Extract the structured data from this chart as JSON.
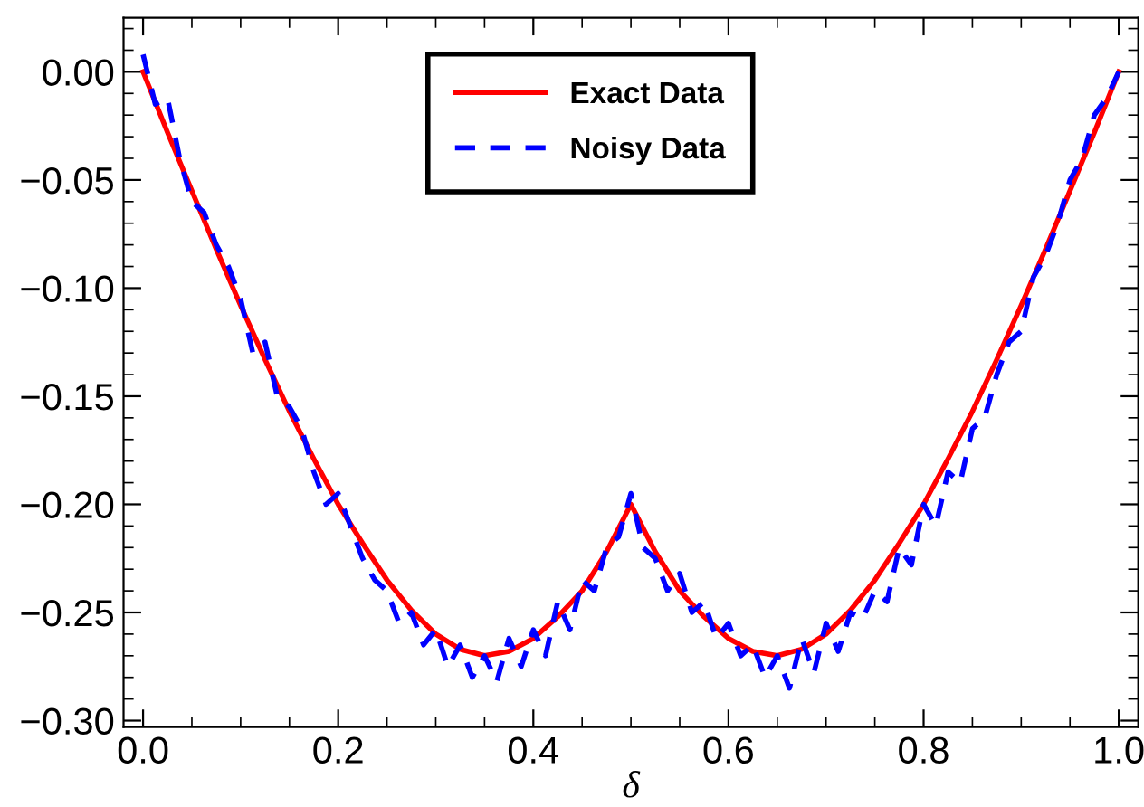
{
  "chart_data": {
    "type": "line",
    "xlabel": "δ",
    "xlim": [
      -0.02,
      1.02
    ],
    "ylim": [
      -0.303,
      0.025
    ],
    "xticks": [
      {
        "value": 0,
        "label": "0.0"
      },
      {
        "value": 0.2,
        "label": "0.2"
      },
      {
        "value": 0.4,
        "label": "0.4"
      },
      {
        "value": 0.6,
        "label": "0.6"
      },
      {
        "value": 0.8,
        "label": "0.8"
      },
      {
        "value": 1,
        "label": "1.0"
      }
    ],
    "yticks": [
      {
        "value": 0,
        "label": "0.00"
      },
      {
        "value": -0.05,
        "label": "−0.05"
      },
      {
        "value": -0.1,
        "label": "−0.10"
      },
      {
        "value": -0.15,
        "label": "−0.15"
      },
      {
        "value": -0.2,
        "label": "−0.20"
      },
      {
        "value": -0.25,
        "label": "−0.25"
      },
      {
        "value": -0.3,
        "label": "−0.30"
      }
    ],
    "grid": false,
    "legend": "top",
    "marker": "none",
    "series": [
      {
        "name": "Exact Data",
        "color": "#ff0000",
        "line_style": "solid",
        "x": [
          0,
          0.025,
          0.05,
          0.075,
          0.1,
          0.125,
          0.15,
          0.175,
          0.2,
          0.225,
          0.25,
          0.275,
          0.3,
          0.325,
          0.35,
          0.375,
          0.4,
          0.425,
          0.45,
          0.475,
          0.5,
          0.525,
          0.55,
          0.575,
          0.6,
          0.625,
          0.65,
          0.675,
          0.7,
          0.725,
          0.75,
          0.775,
          0.8,
          0.825,
          0.85,
          0.875,
          0.9,
          0.925,
          0.95,
          0.975,
          1.0
        ],
        "values": [
          0,
          -0.028,
          -0.055,
          -0.082,
          -0.108,
          -0.133,
          -0.157,
          -0.179,
          -0.2,
          -0.218,
          -0.235,
          -0.249,
          -0.26,
          -0.267,
          -0.27,
          -0.268,
          -0.262,
          -0.252,
          -0.24,
          -0.222,
          -0.2,
          -0.222,
          -0.24,
          -0.252,
          -0.262,
          -0.268,
          -0.27,
          -0.267,
          -0.26,
          -0.249,
          -0.235,
          -0.218,
          -0.2,
          -0.179,
          -0.157,
          -0.133,
          -0.108,
          -0.082,
          -0.055,
          -0.028,
          0
        ]
      },
      {
        "name": "Noisy Data",
        "color": "#0000ff",
        "line_style": "dashed",
        "x": [
          0,
          0.0125,
          0.025,
          0.0375,
          0.05,
          0.0625,
          0.075,
          0.0875,
          0.1,
          0.1125,
          0.125,
          0.1375,
          0.15,
          0.1625,
          0.175,
          0.1875,
          0.2,
          0.2125,
          0.225,
          0.2375,
          0.25,
          0.2625,
          0.275,
          0.2875,
          0.3,
          0.3125,
          0.325,
          0.3375,
          0.35,
          0.3625,
          0.375,
          0.3875,
          0.4,
          0.4125,
          0.425,
          0.4375,
          0.45,
          0.4625,
          0.475,
          0.4875,
          0.5,
          0.5125,
          0.525,
          0.5375,
          0.55,
          0.5625,
          0.575,
          0.5875,
          0.6,
          0.6125,
          0.625,
          0.6375,
          0.65,
          0.6625,
          0.675,
          0.6875,
          0.7,
          0.7125,
          0.725,
          0.7375,
          0.75,
          0.7625,
          0.775,
          0.7875,
          0.8,
          0.8125,
          0.825,
          0.8375,
          0.85,
          0.8625,
          0.875,
          0.8875,
          0.9,
          0.9125,
          0.925,
          0.9375,
          0.95,
          0.9625,
          0.975,
          0.9875,
          1.0
        ],
        "values": [
          0.008,
          -0.015,
          -0.012,
          -0.04,
          -0.06,
          -0.065,
          -0.08,
          -0.09,
          -0.105,
          -0.13,
          -0.125,
          -0.15,
          -0.155,
          -0.165,
          -0.185,
          -0.2,
          -0.195,
          -0.21,
          -0.225,
          -0.235,
          -0.24,
          -0.255,
          -0.25,
          -0.265,
          -0.258,
          -0.275,
          -0.265,
          -0.28,
          -0.27,
          -0.282,
          -0.262,
          -0.275,
          -0.258,
          -0.27,
          -0.245,
          -0.258,
          -0.235,
          -0.24,
          -0.22,
          -0.215,
          -0.195,
          -0.22,
          -0.225,
          -0.24,
          -0.232,
          -0.25,
          -0.245,
          -0.262,
          -0.255,
          -0.27,
          -0.265,
          -0.28,
          -0.27,
          -0.285,
          -0.262,
          -0.278,
          -0.255,
          -0.268,
          -0.25,
          -0.253,
          -0.24,
          -0.245,
          -0.22,
          -0.228,
          -0.2,
          -0.21,
          -0.185,
          -0.19,
          -0.165,
          -0.16,
          -0.14,
          -0.125,
          -0.12,
          -0.095,
          -0.085,
          -0.07,
          -0.05,
          -0.04,
          -0.02,
          -0.012,
          0.0
        ]
      }
    ]
  }
}
